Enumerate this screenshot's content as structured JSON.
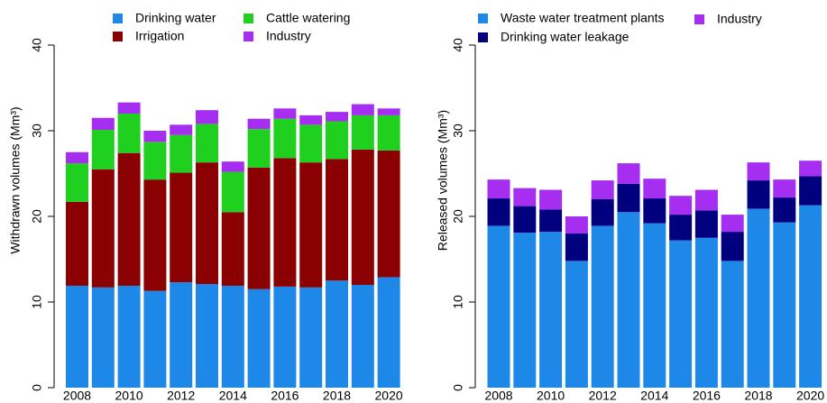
{
  "chart_data": [
    {
      "type": "bar",
      "stacked": true,
      "y_label": "Withdrawn volumes (Mm³)",
      "categories": [
        "2008",
        null,
        "2010",
        null,
        "2012",
        null,
        "2014",
        null,
        "2016",
        null,
        "2018",
        null,
        "2020"
      ],
      "ylim": [
        0,
        40
      ],
      "yticks": [
        0,
        10,
        20,
        30,
        40
      ],
      "series": [
        {
          "name": "Drinking water",
          "color": "#1e88e8",
          "values": [
            11.9,
            11.7,
            11.9,
            11.3,
            12.3,
            12.1,
            11.9,
            11.5,
            11.8,
            11.7,
            12.5,
            12.0,
            12.9
          ]
        },
        {
          "name": "Irrigation",
          "color": "#8b0000",
          "values": [
            9.8,
            13.8,
            15.5,
            13.0,
            12.8,
            14.2,
            8.6,
            14.2,
            15.0,
            14.6,
            14.2,
            15.8,
            14.8
          ]
        },
        {
          "name": "Cattle watering",
          "color": "#1fd01f",
          "values": [
            4.5,
            4.6,
            4.6,
            4.4,
            4.4,
            4.5,
            4.7,
            4.5,
            4.6,
            4.4,
            4.4,
            4.0,
            4.1
          ]
        },
        {
          "name": "Industry",
          "color": "#a52ef0",
          "values": [
            1.3,
            1.4,
            1.3,
            1.3,
            1.2,
            1.6,
            1.2,
            1.2,
            1.2,
            1.1,
            1.1,
            1.3,
            0.8
          ]
        }
      ]
    },
    {
      "type": "bar",
      "stacked": true,
      "y_label": "Released volumes (Mm³)",
      "categories": [
        "2008",
        null,
        "2010",
        null,
        "2012",
        null,
        "2014",
        null,
        "2016",
        null,
        "2018",
        null,
        "2020"
      ],
      "ylim": [
        0,
        40
      ],
      "yticks": [
        0,
        10,
        20,
        30,
        40
      ],
      "series": [
        {
          "name": "Waste water treatment plants",
          "color": "#1e88e8",
          "values": [
            18.9,
            18.1,
            18.2,
            14.8,
            18.9,
            20.5,
            19.2,
            17.2,
            17.5,
            14.8,
            20.9,
            19.3,
            21.3
          ]
        },
        {
          "name": "Drinking water leakage",
          "color": "#00007f",
          "values": [
            3.2,
            3.1,
            2.6,
            3.2,
            3.1,
            3.3,
            2.9,
            3.0,
            3.2,
            3.4,
            3.3,
            2.9,
            3.4
          ]
        },
        {
          "name": "Industry",
          "color": "#a52ef0",
          "values": [
            2.2,
            2.1,
            2.3,
            2.0,
            2.2,
            2.4,
            2.3,
            2.2,
            2.4,
            2.0,
            2.1,
            2.1,
            1.8
          ]
        }
      ]
    }
  ]
}
